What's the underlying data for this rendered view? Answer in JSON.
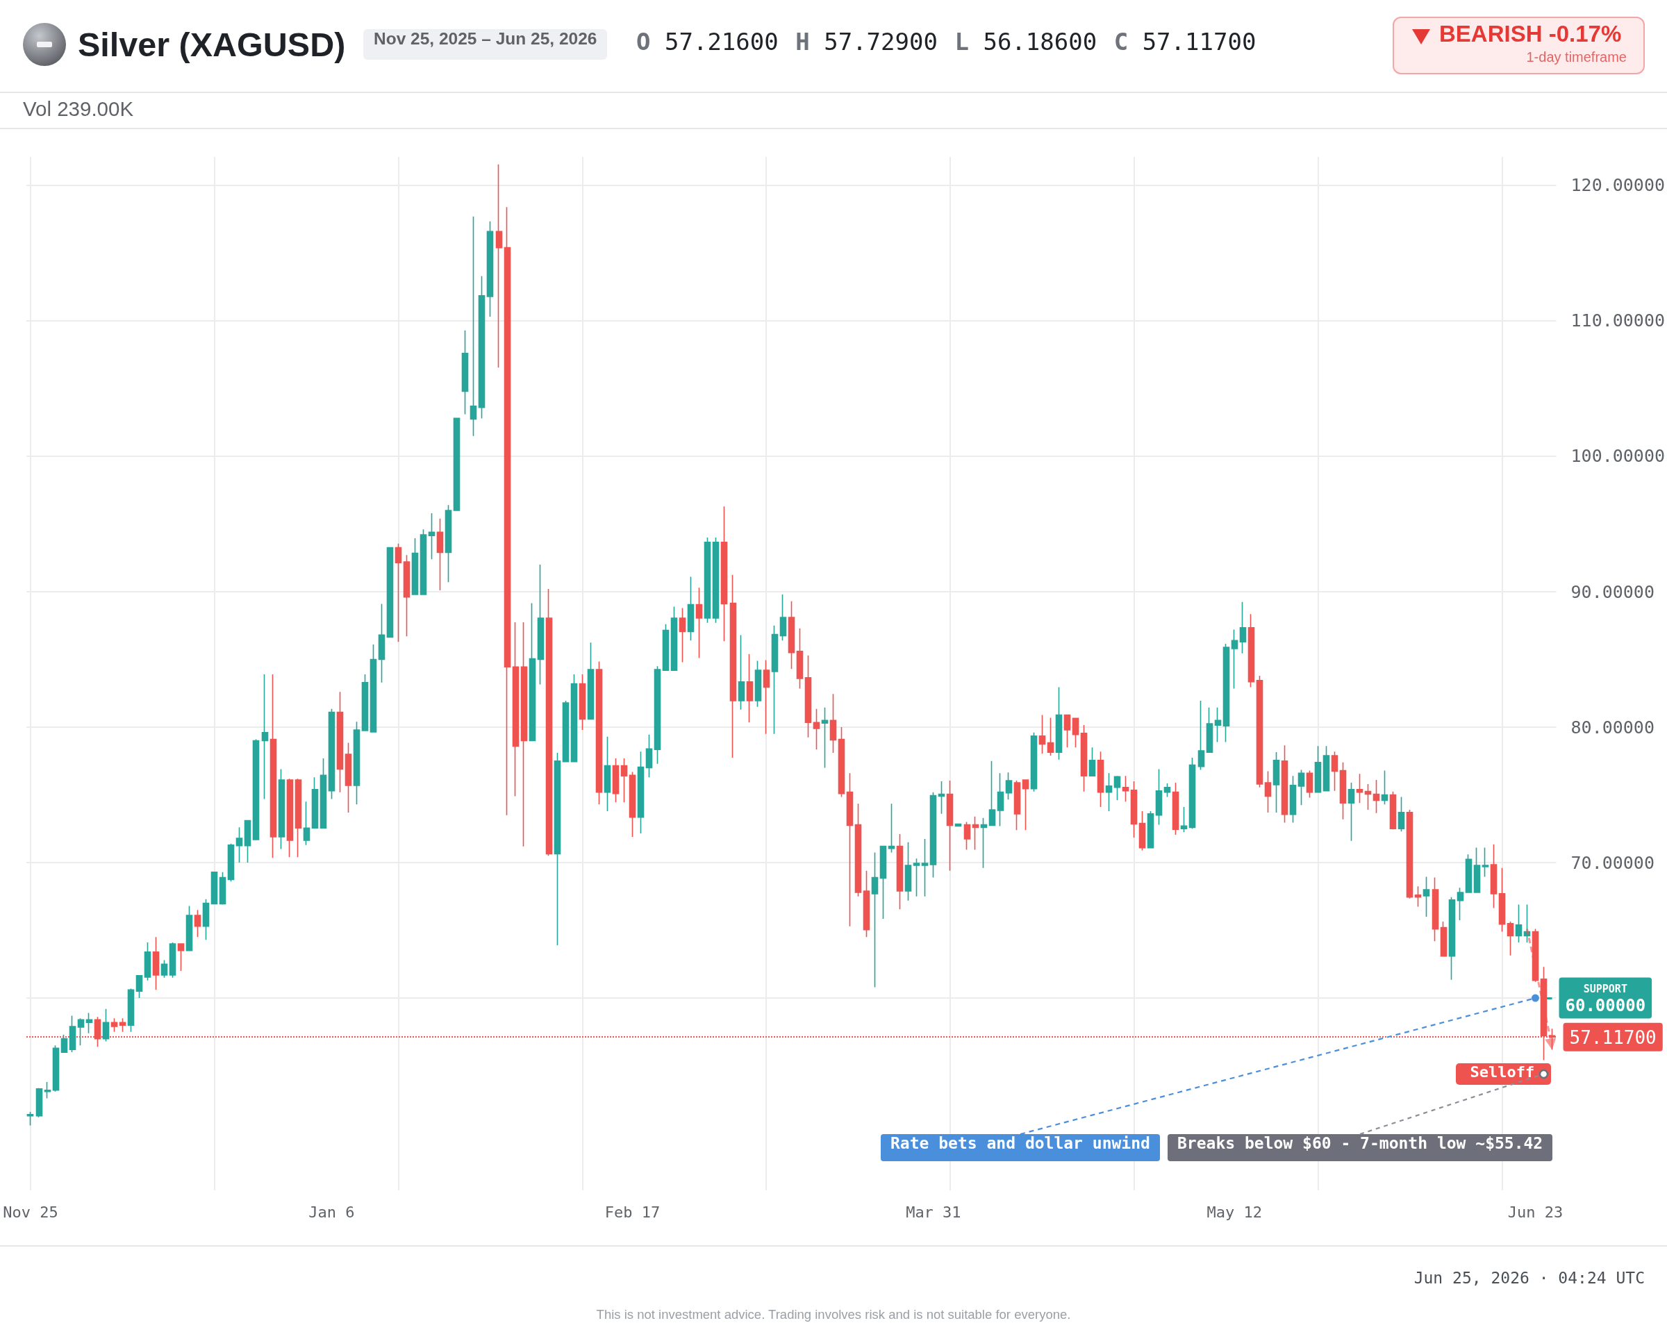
{
  "chart_data": {
    "type": "candlestick",
    "title": "Silver (XAGUSD)",
    "subtitle": "Nov 25, 2025 – Jun 25, 2026",
    "categories": [
      "Nov 25",
      null,
      null,
      null,
      null,
      null,
      null,
      null,
      null,
      null,
      null,
      null,
      null,
      null,
      null,
      null,
      null,
      null,
      null,
      null,
      null,
      null,
      null,
      null,
      null,
      null,
      null,
      null,
      null,
      null,
      null,
      null,
      null,
      null,
      null,
      null,
      "Jan 6",
      null,
      null,
      null,
      null,
      null,
      null,
      null,
      null,
      null,
      null,
      null,
      null,
      null,
      null,
      null,
      null,
      null,
      null,
      null,
      null,
      null,
      null,
      null,
      null,
      null,
      null,
      null,
      null,
      null,
      null,
      null,
      null,
      null,
      null,
      null,
      "Feb 17",
      null,
      null,
      null,
      null,
      null,
      null,
      null,
      null,
      null,
      null,
      null,
      null,
      null,
      null,
      null,
      null,
      null,
      null,
      null,
      null,
      null,
      null,
      null,
      null,
      null,
      null,
      null,
      null,
      null,
      null,
      null,
      null,
      null,
      null,
      null,
      "Mar 31",
      null,
      null,
      null,
      null,
      null,
      null,
      null,
      null,
      null,
      null,
      null,
      null,
      null,
      null,
      null,
      null,
      null,
      null,
      null,
      null,
      null,
      null,
      null,
      null,
      null,
      null,
      null,
      null,
      null,
      null,
      null,
      null,
      null,
      null,
      null,
      "May 12",
      null,
      null,
      null,
      null,
      null,
      null,
      null,
      null,
      null,
      null,
      null,
      null,
      null,
      null,
      null,
      null,
      null,
      null,
      null,
      null,
      null,
      null,
      null,
      null,
      null,
      null,
      null,
      null,
      null,
      null,
      null,
      null,
      null,
      null,
      null,
      "Jun 23",
      null,
      null
    ],
    "ohlc": [
      [
        51.3,
        51.6,
        50.6,
        51.4
      ],
      [
        51.3,
        53.35,
        51.2,
        53.3
      ],
      [
        53.1,
        53.8,
        52.6,
        53.2
      ],
      [
        53.2,
        56.5,
        53.1,
        56.3
      ],
      [
        56.0,
        57.3,
        56.0,
        57.0
      ],
      [
        56.2,
        58.7,
        56.0,
        57.9
      ],
      [
        57.85,
        58.5,
        56.5,
        58.4
      ],
      [
        58.2,
        58.9,
        57.4,
        58.4
      ],
      [
        58.4,
        58.6,
        56.4,
        57.0
      ],
      [
        57.0,
        59.2,
        56.8,
        58.2
      ],
      [
        58.2,
        58.5,
        57.5,
        57.9
      ],
      [
        58.2,
        58.5,
        57.5,
        58.0
      ],
      [
        58.0,
        60.7,
        57.5,
        60.6
      ],
      [
        60.5,
        61.7,
        60.0,
        61.65
      ],
      [
        61.55,
        64.1,
        61.3,
        63.4
      ],
      [
        63.4,
        64.5,
        60.6,
        61.7
      ],
      [
        61.7,
        62.8,
        61.5,
        62.5
      ],
      [
        61.7,
        64.1,
        61.5,
        64.0
      ],
      [
        64.0,
        64.0,
        62.0,
        63.5
      ],
      [
        63.5,
        66.8,
        63.5,
        66.1
      ],
      [
        66.1,
        66.5,
        64.5,
        65.3
      ],
      [
        65.3,
        67.3,
        64.3,
        67.0
      ],
      [
        66.95,
        69.3,
        66.95,
        69.3
      ],
      [
        66.95,
        69.3,
        66.9,
        68.9
      ],
      [
        68.75,
        71.4,
        68.6,
        71.3
      ],
      [
        71.25,
        72.6,
        70.0,
        71.8
      ],
      [
        71.25,
        73.1,
        70.0,
        73.1
      ],
      [
        71.7,
        79.1,
        71.65,
        79.0
      ],
      [
        79.0,
        83.9,
        74.7,
        79.6
      ],
      [
        79.1,
        83.9,
        70.35,
        71.9
      ],
      [
        71.9,
        76.9,
        71.0,
        76.1
      ],
      [
        76.1,
        76.2,
        70.4,
        71.65
      ],
      [
        76.1,
        76.2,
        70.4,
        72.55
      ],
      [
        71.65,
        74.5,
        71.3,
        72.55
      ],
      [
        72.55,
        76.3,
        72.55,
        75.4
      ],
      [
        72.55,
        77.7,
        72.55,
        76.45
      ],
      [
        75.3,
        81.35,
        74.7,
        81.1
      ],
      [
        81.1,
        82.6,
        75.2,
        76.9
      ],
      [
        78.0,
        78.85,
        73.7,
        75.7
      ],
      [
        75.7,
        80.4,
        74.3,
        79.8
      ],
      [
        79.75,
        83.9,
        79.75,
        83.3
      ],
      [
        79.65,
        86.1,
        79.65,
        85.0
      ],
      [
        85.0,
        89.1,
        83.3,
        86.8
      ],
      [
        86.65,
        93.3,
        86.65,
        93.25
      ],
      [
        93.25,
        93.55,
        86.3,
        92.15
      ],
      [
        92.2,
        92.7,
        86.7,
        89.6
      ],
      [
        89.8,
        93.95,
        89.8,
        92.85
      ],
      [
        89.8,
        94.6,
        89.8,
        94.2
      ],
      [
        94.15,
        95.8,
        92.4,
        94.4
      ],
      [
        94.4,
        95.4,
        90.1,
        92.9
      ],
      [
        92.9,
        96.4,
        90.7,
        96.0
      ],
      [
        96.0,
        102.8,
        96.0,
        102.8
      ],
      [
        104.8,
        109.3,
        103.1,
        107.6
      ],
      [
        102.75,
        117.7,
        101.5,
        103.7
      ],
      [
        103.6,
        113.3,
        102.8,
        111.85
      ],
      [
        111.8,
        117.35,
        110.3,
        116.6
      ],
      [
        116.6,
        121.55,
        106.55,
        115.4
      ],
      [
        115.4,
        118.4,
        73.5,
        84.45
      ],
      [
        84.45,
        87.75,
        74.9,
        78.6
      ],
      [
        84.45,
        87.75,
        71.2,
        79.0
      ],
      [
        79.0,
        89.15,
        79.0,
        85.05
      ],
      [
        85.0,
        92.0,
        83.15,
        88.05
      ],
      [
        88.05,
        90.2,
        70.5,
        70.65
      ],
      [
        70.65,
        78.1,
        63.9,
        77.5
      ],
      [
        77.45,
        81.95,
        77.45,
        81.8
      ],
      [
        77.45,
        83.9,
        77.45,
        83.2
      ],
      [
        83.2,
        83.9,
        79.8,
        80.6
      ],
      [
        80.6,
        86.25,
        80.6,
        84.25
      ],
      [
        84.25,
        84.85,
        74.3,
        75.2
      ],
      [
        75.2,
        79.3,
        73.8,
        77.15
      ],
      [
        77.15,
        77.7,
        74.45,
        75.1
      ],
      [
        77.15,
        77.7,
        74.45,
        76.4
      ],
      [
        76.45,
        76.7,
        71.9,
        73.35
      ],
      [
        73.35,
        78.2,
        72.15,
        77.05
      ],
      [
        77.0,
        79.45,
        76.3,
        78.4
      ],
      [
        78.35,
        84.5,
        77.3,
        84.25
      ],
      [
        84.2,
        87.6,
        84.2,
        87.15
      ],
      [
        84.2,
        88.9,
        84.2,
        88.05
      ],
      [
        88.05,
        88.8,
        84.8,
        87.05
      ],
      [
        87.05,
        91.1,
        86.4,
        89.05
      ],
      [
        89.05,
        90.3,
        85.1,
        88.05
      ],
      [
        88.05,
        94.0,
        87.7,
        93.65
      ],
      [
        88.05,
        94.0,
        87.7,
        93.65
      ],
      [
        93.65,
        96.3,
        86.35,
        89.1
      ],
      [
        89.15,
        91.25,
        77.75,
        81.95
      ],
      [
        81.95,
        86.8,
        81.3,
        83.35
      ],
      [
        83.35,
        85.4,
        80.35,
        81.95
      ],
      [
        81.95,
        84.9,
        81.5,
        84.2
      ],
      [
        84.2,
        84.95,
        79.5,
        82.95
      ],
      [
        84.1,
        87.5,
        79.5,
        86.85
      ],
      [
        86.75,
        89.8,
        86.4,
        88.1
      ],
      [
        88.1,
        89.3,
        84.3,
        85.5
      ],
      [
        85.6,
        87.3,
        82.85,
        83.6
      ],
      [
        83.65,
        85.3,
        79.25,
        80.35
      ],
      [
        80.35,
        81.35,
        78.35,
        79.9
      ],
      [
        80.3,
        81.45,
        77.0,
        80.5
      ],
      [
        80.5,
        82.45,
        78.1,
        79.05
      ],
      [
        79.1,
        80.0,
        74.85,
        75.1
      ],
      [
        75.2,
        76.6,
        65.3,
        72.75
      ],
      [
        72.8,
        74.35,
        67.5,
        67.8
      ],
      [
        67.9,
        69.4,
        64.5,
        65.05
      ],
      [
        67.7,
        70.75,
        60.8,
        68.9
      ],
      [
        68.85,
        71.25,
        65.85,
        71.2
      ],
      [
        71.05,
        74.35,
        70.75,
        71.2
      ],
      [
        71.2,
        72.1,
        66.55,
        67.9
      ],
      [
        67.9,
        71.5,
        67.2,
        69.8
      ],
      [
        69.8,
        70.3,
        67.5,
        69.95
      ],
      [
        69.8,
        71.75,
        67.5,
        69.95
      ],
      [
        69.85,
        75.2,
        68.9,
        74.95
      ],
      [
        74.9,
        76.0,
        73.6,
        75.05
      ],
      [
        75.05,
        76.05,
        69.4,
        72.75
      ],
      [
        72.7,
        72.85,
        72.7,
        72.85
      ],
      [
        72.8,
        73.0,
        70.95,
        71.75
      ],
      [
        72.8,
        73.4,
        70.95,
        72.6
      ],
      [
        72.6,
        73.3,
        69.6,
        72.8
      ],
      [
        72.75,
        77.5,
        72.75,
        73.9
      ],
      [
        73.85,
        76.6,
        72.7,
        75.2
      ],
      [
        75.15,
        76.65,
        74.65,
        76.05
      ],
      [
        75.9,
        76.05,
        72.4,
        73.6
      ],
      [
        76.1,
        76.1,
        72.4,
        75.45
      ],
      [
        75.45,
        79.6,
        75.25,
        79.35
      ],
      [
        79.35,
        80.9,
        78.05,
        78.75
      ],
      [
        78.85,
        80.7,
        77.9,
        78.15
      ],
      [
        78.15,
        82.95,
        77.6,
        80.9
      ],
      [
        80.9,
        80.9,
        78.5,
        79.8
      ],
      [
        80.65,
        80.65,
        78.5,
        79.45
      ],
      [
        79.55,
        80.15,
        75.25,
        76.4
      ],
      [
        76.4,
        78.5,
        76.4,
        77.55
      ],
      [
        77.55,
        78.2,
        74.1,
        75.2
      ],
      [
        75.2,
        76.6,
        73.8,
        75.65
      ],
      [
        75.55,
        76.4,
        74.6,
        76.35
      ],
      [
        75.55,
        76.4,
        74.5,
        75.3
      ],
      [
        75.35,
        76.0,
        71.85,
        72.85
      ],
      [
        72.9,
        73.8,
        70.9,
        71.1
      ],
      [
        71.1,
        73.8,
        71.05,
        73.6
      ],
      [
        73.5,
        76.9,
        72.8,
        75.3
      ],
      [
        75.2,
        75.85,
        74.85,
        75.55
      ],
      [
        75.2,
        75.9,
        72.05,
        72.45
      ],
      [
        72.5,
        74.1,
        72.25,
        72.7
      ],
      [
        72.6,
        77.75,
        72.5,
        77.2
      ],
      [
        77.1,
        81.95,
        76.85,
        78.25
      ],
      [
        78.15,
        81.45,
        78.15,
        80.25
      ],
      [
        80.15,
        81.45,
        78.9,
        80.5
      ],
      [
        80.1,
        86.15,
        78.9,
        85.9
      ],
      [
        85.8,
        87.2,
        82.85,
        86.4
      ],
      [
        86.3,
        89.25,
        85.45,
        87.35
      ],
      [
        87.35,
        88.35,
        82.95,
        83.35
      ],
      [
        83.45,
        83.8,
        75.55,
        75.8
      ],
      [
        75.9,
        76.75,
        73.7,
        74.9
      ],
      [
        75.75,
        78.15,
        73.7,
        77.55
      ],
      [
        77.5,
        78.65,
        72.95,
        73.55
      ],
      [
        73.55,
        76.4,
        72.95,
        75.7
      ],
      [
        75.65,
        76.85,
        74.25,
        76.6
      ],
      [
        76.6,
        76.8,
        74.8,
        75.2
      ],
      [
        75.2,
        78.6,
        75.2,
        77.4
      ],
      [
        75.3,
        78.6,
        75.3,
        77.9
      ],
      [
        77.9,
        78.2,
        75.3,
        76.75
      ],
      [
        76.8,
        77.4,
        73.2,
        74.4
      ],
      [
        74.4,
        75.9,
        71.6,
        75.4
      ],
      [
        75.4,
        76.55,
        74.4,
        75.2
      ],
      [
        75.25,
        75.8,
        73.9,
        75.05
      ],
      [
        75.05,
        76.1,
        73.65,
        74.6
      ],
      [
        74.6,
        76.8,
        74.3,
        75.0
      ],
      [
        75.0,
        75.25,
        72.45,
        72.5
      ],
      [
        72.5,
        74.85,
        72.3,
        73.7
      ],
      [
        73.7,
        73.9,
        67.35,
        67.45
      ],
      [
        67.6,
        68.25,
        66.75,
        67.45
      ],
      [
        67.55,
        68.95,
        66.0,
        68.0
      ],
      [
        68.0,
        68.9,
        64.2,
        65.1
      ],
      [
        65.2,
        65.65,
        63.1,
        63.1
      ],
      [
        63.1,
        67.45,
        61.35,
        67.25
      ],
      [
        67.2,
        68.15,
        65.75,
        67.8
      ],
      [
        67.8,
        70.6,
        67.8,
        70.25
      ],
      [
        67.8,
        71.1,
        67.8,
        69.8
      ],
      [
        69.7,
        71.1,
        68.95,
        69.8
      ],
      [
        69.85,
        71.35,
        66.65,
        67.7
      ],
      [
        67.7,
        69.6,
        64.9,
        65.45
      ],
      [
        65.5,
        65.65,
        63.15,
        64.6
      ],
      [
        64.6,
        66.9,
        64.1,
        65.4
      ],
      [
        64.6,
        66.9,
        64.1,
        64.9
      ],
      [
        64.9,
        65.1,
        61.2,
        61.3
      ],
      [
        61.4,
        62.3,
        55.42,
        57.216
      ],
      [
        57.216,
        57.729,
        56.186,
        57.117
      ]
    ],
    "colors": [
      "#26a69a",
      "#26a69a",
      "#26a69a",
      "#26a69a",
      "#26a69a",
      "#26a69a",
      "#26a69a",
      "#26a69a",
      "#ef5350",
      "#26a69a",
      "#ef5350",
      "#ef5350",
      "#26a69a",
      "#26a69a",
      "#26a69a",
      "#ef5350",
      "#26a69a",
      "#26a69a",
      "#ef5350",
      "#26a69a",
      "#ef5350",
      "#26a69a",
      "#26a69a",
      "#26a69a",
      "#26a69a",
      "#26a69a",
      "#26a69a",
      "#26a69a",
      "#26a69a",
      "#ef5350",
      "#26a69a",
      "#ef5350",
      "#ef5350",
      "#26a69a",
      "#26a69a",
      "#26a69a",
      "#26a69a",
      "#ef5350",
      "#ef5350",
      "#26a69a",
      "#26a69a",
      "#26a69a",
      "#26a69a",
      "#26a69a",
      "#ef5350",
      "#ef5350",
      "#26a69a",
      "#26a69a",
      "#26a69a",
      "#ef5350",
      "#26a69a",
      "#26a69a",
      "#26a69a",
      "#26a69a",
      "#26a69a",
      "#26a69a",
      "#ef5350",
      "#ef5350",
      "#ef5350",
      "#ef5350",
      "#26a69a",
      "#26a69a",
      "#ef5350",
      "#26a69a",
      "#26a69a",
      "#26a69a",
      "#ef5350",
      "#26a69a",
      "#ef5350",
      "#26a69a",
      "#ef5350",
      "#ef5350",
      "#ef5350",
      "#26a69a",
      "#26a69a",
      "#26a69a",
      "#26a69a",
      "#26a69a",
      "#ef5350",
      "#26a69a",
      "#ef5350",
      "#26a69a",
      "#26a69a",
      "#ef5350",
      "#ef5350",
      "#26a69a",
      "#ef5350",
      "#26a69a",
      "#ef5350",
      "#26a69a",
      "#26a69a",
      "#ef5350",
      "#ef5350",
      "#ef5350",
      "#ef5350",
      "#26a69a",
      "#ef5350",
      "#ef5350",
      "#ef5350",
      "#ef5350",
      "#ef5350",
      "#26a69a",
      "#26a69a",
      "#26a69a",
      "#ef5350",
      "#26a69a",
      "#26a69a",
      "#26a69a",
      "#26a69a",
      "#26a69a",
      "#ef5350",
      "#26a69a",
      "#ef5350",
      "#ef5350",
      "#26a69a",
      "#26a69a",
      "#26a69a",
      "#26a69a",
      "#ef5350",
      "#ef5350",
      "#26a69a",
      "#ef5350",
      "#ef5350",
      "#26a69a",
      "#ef5350",
      "#ef5350",
      "#ef5350",
      "#26a69a",
      "#ef5350",
      "#26a69a",
      "#26a69a",
      "#ef5350",
      "#ef5350",
      "#ef5350",
      "#26a69a",
      "#26a69a",
      "#26a69a",
      "#ef5350",
      "#26a69a",
      "#26a69a",
      "#26a69a",
      "#26a69a",
      "#26a69a",
      "#26a69a",
      "#26a69a",
      "#26a69a",
      "#ef5350",
      "#ef5350",
      "#ef5350",
      "#26a69a",
      "#ef5350",
      "#26a69a",
      "#26a69a",
      "#ef5350",
      "#26a69a",
      "#26a69a",
      "#ef5350",
      "#ef5350",
      "#26a69a",
      "#ef5350",
      "#ef5350",
      "#ef5350",
      "#26a69a",
      "#ef5350",
      "#26a69a",
      "#ef5350",
      "#ef5350",
      "#26a69a",
      "#ef5350",
      "#ef5350",
      "#26a69a",
      "#26a69a",
      "#26a69a",
      "#26a69a",
      "#26a69a",
      "#ef5350",
      "#ef5350",
      "#ef5350",
      "#26a69a",
      "#26a69a",
      "#ef5350",
      "#ef5350",
      "#ef5350"
    ],
    "ylim": [
      45.8,
      122.1
    ],
    "yticks": [
      {
        "value": 60,
        "label": null
      },
      {
        "value": 70,
        "label": "70.00000"
      },
      {
        "value": 80,
        "label": "80.00000"
      },
      {
        "value": 90,
        "label": "90.00000"
      },
      {
        "value": 100,
        "label": "100.00000"
      },
      {
        "value": 110,
        "label": "110.00000"
      },
      {
        "value": 120,
        "label": "120.00000"
      }
    ],
    "grid": true,
    "ref_lines": [
      {
        "axis": "y",
        "value": 60,
        "label": "SUPPORT 60.00000",
        "color": "#26a69a"
      },
      {
        "axis": "y",
        "value": 57.117,
        "label": "57.11700",
        "color": "#ef5350",
        "line_style": "dotted"
      }
    ],
    "annotations": [
      "O 57.21600 H 57.72900 L 56.18600 C 57.11700",
      "Vol 239.00K",
      "BEARISH -0.17%",
      "1-day timeframe",
      "Rate bets and dollar unwind",
      "Breaks below $60 - 7-month low ~$55.42",
      "Selloff",
      "Jun 25, 2026 · 04:24 UTC",
      "This is not investment advice. Trading involves risk and is not suitable for everyone."
    ]
  }
}
